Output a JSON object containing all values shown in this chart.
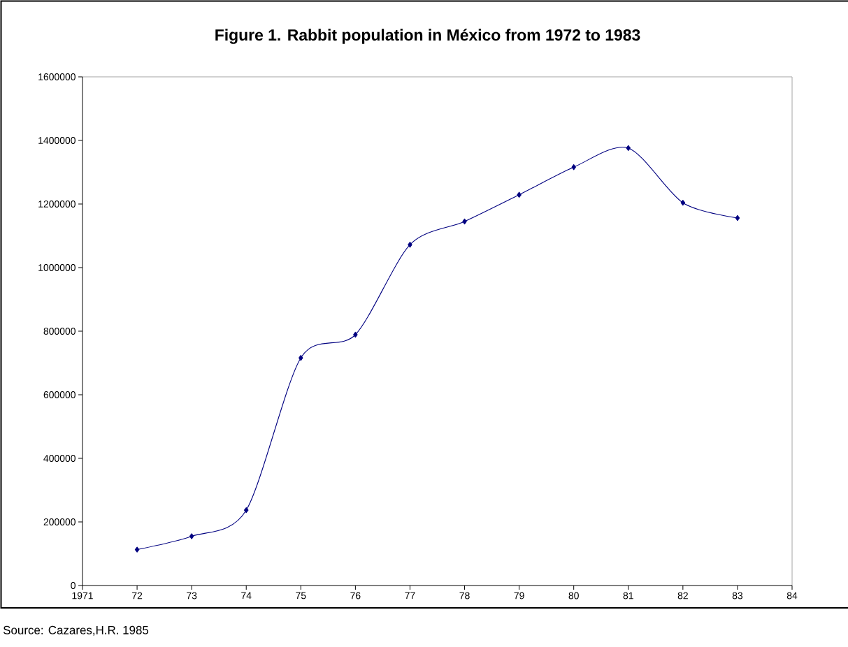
{
  "chart_data": {
    "type": "line",
    "title": "Figure 1. Rabbit population in México from 1972 to 1983",
    "annotations": [
      "Source: Cazares,H.R. 1985"
    ],
    "x": [
      1972,
      1973,
      1974,
      1975,
      1976,
      1977,
      1978,
      1979,
      1980,
      1981,
      1982,
      1983
    ],
    "series": [
      {
        "color": "#000080",
        "values": [
          113000,
          155000,
          237000,
          716000,
          789000,
          1072000,
          1145000,
          1229000,
          1316000,
          1376000,
          1204000,
          1156000
        ]
      }
    ],
    "xlim": [
      1971,
      1984
    ],
    "xticks": [
      1971,
      {
        "value": 1972,
        "label": "72"
      },
      {
        "value": 1973,
        "label": "73"
      },
      {
        "value": 1974,
        "label": "74"
      },
      {
        "value": 1975,
        "label": "75"
      },
      {
        "value": 1976,
        "label": "76"
      },
      {
        "value": 1977,
        "label": "77"
      },
      {
        "value": 1978,
        "label": "78"
      },
      {
        "value": 1979,
        "label": "79"
      },
      {
        "value": 1980,
        "label": "80"
      },
      {
        "value": 1981,
        "label": "81"
      },
      {
        "value": 1982,
        "label": "82"
      },
      {
        "value": 1983,
        "label": "83"
      },
      {
        "value": 1984,
        "label": "84"
      }
    ],
    "ylim": [
      0,
      1600000
    ],
    "yticks": [
      0,
      200000,
      400000,
      600000,
      800000,
      1000000,
      1200000,
      1400000,
      1600000
    ],
    "grid": false,
    "legend": false,
    "marker": "diamond",
    "line_style": "solid"
  }
}
